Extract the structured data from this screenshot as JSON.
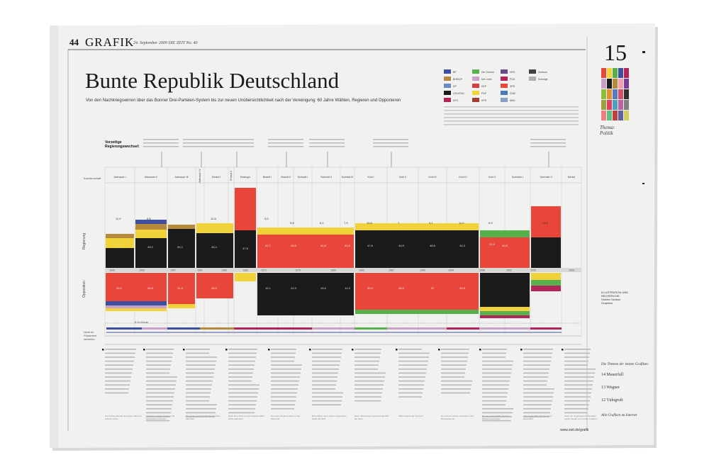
{
  "newspaper": {
    "page_number": "44",
    "section": "GRAFIK",
    "dateline": "24. September 2009   DIE ZEIT  No. 40",
    "right_page_number": "15",
    "rubric": "Thema: Politik",
    "footer_url": "www.zeit.de/grafik"
  },
  "headline": {
    "title": "Bunte Republik Deutschland",
    "subtitle": "Von den Nachkriegswirren über das Bonner Drei-Parteien-System bis zur neuen Unübersichtlichkeit nach der Vereinigung: 60 Jahre Wählen, Regieren und Opponieren"
  },
  "chart_labels": {
    "government_heading": "Vorzeitige Regierungswechsel:",
    "chancellor_row": "Kanzlerschaft",
    "government_axis": "Regierung",
    "opposition_axis": "Opposition",
    "not_in_parliament": "Nicht im Parlament vertreten",
    "five_percent": "5-%-Hürde"
  },
  "chancellors": [
    "Adenauer I",
    "Adenauer II",
    "Adenauer III",
    "Adenauer IV",
    "Erhard I",
    "Erhard II",
    "Kiesinger",
    "Brandt I",
    "Brandt II",
    "Schmidt I",
    "Schmidt II",
    "Schmidt III",
    "Kohl I",
    "Kohl II",
    "Kohl III",
    "Kohl IV",
    "Kohl V",
    "Schröder I",
    "Schröder II",
    "Merkel"
  ],
  "years": [
    "1949",
    "1953",
    "1957",
    "1961",
    "1965",
    "1969",
    "1972",
    "1976",
    "1980",
    "1983",
    "1987",
    "1990",
    "1994",
    "1998",
    "2002",
    "2005",
    "2009"
  ],
  "legend": [
    "BP",
    "BHE/DP",
    "DP",
    "CDU/CSU",
    "DFU",
    "Die Grünen",
    "Die Linke",
    "DKP",
    "FDP",
    "KPD",
    "NPD",
    "PDS",
    "SPD",
    "SSW",
    "WAV",
    "Zentrum",
    "Sonstige"
  ],
  "colors": {
    "cdu": "#1b1b1b",
    "spd": "#e8463b",
    "fdp": "#f0d23a",
    "gruene": "#58b04c",
    "linke": "#b2245a",
    "dp": "#b58a3c",
    "kpd": "#3e4fa0",
    "paper": "#f2f3f0",
    "photo_bg": "#ffffff"
  },
  "values": {
    "govt_cdu": [
      "31",
      "45,2",
      "50,2",
      "45,4",
      "47,6",
      "47,6",
      "44,9",
      "48,8",
      "44,3",
      "43,8",
      "41,5",
      "35,2"
    ],
    "govt_spd": [
      "42,7",
      "45,8",
      "42,6",
      "42,9",
      "40,9",
      "38,5",
      "34,2"
    ],
    "opp_spd": [
      "29,2",
      "28,8",
      "31,8",
      "36,2",
      "39,3",
      "38,2",
      "37",
      "33,5",
      "36,4",
      "40,9",
      "34,2"
    ],
    "opp_cdu": [
      "46,1",
      "44,9",
      "48,6",
      "44,5"
    ],
    "fdp": [
      "11,9",
      "9,5",
      "12,8",
      "9,5",
      "5,8",
      "8,4",
      "7,9",
      "10,6",
      "7",
      "9,1",
      "11,0",
      "6,9",
      "14,6"
    ]
  },
  "text_columns": [
    "Die Parteienvielfalt der ersten Jahre ist schnell vorbei.",
    "Adenauer regiert zunächst mit bürgerlichen Partnern.",
    "Die Union erreicht 1957 die absolute Mehrheit.",
    "Nach dem Streit um die Spiegel-Affäre bleibt Adenauer.",
    "Die erste Große Koalition unter Kiesinger.",
    "Das Fehlen einer starken Opposition stärkt die APO.",
    "Nach Jahrzehnten wechselt die FDP die Seite.",
    "1983 beginnt die Ära Kohl.",
    "Die Grünen ziehen erstmals in den Bundestag ein.",
    "Bei der ersten Wahl nach der Wiedervereinigung.",
    "Zum ersten Mal wird die Union abgewählt.",
    "Nach der vorgezogenen Neuwahl regiert wieder eine Große Koalition."
  ],
  "right_column": [
    "Die Themen der letzten Grafiken:",
    "14 Mauerfall",
    "13 Wegner",
    "12 Vidogruft",
    "Alle Grafiken im Internet"
  ],
  "credits": "ILLUSTRATION UND RECHERCHE: Golden Section Graphics"
}
